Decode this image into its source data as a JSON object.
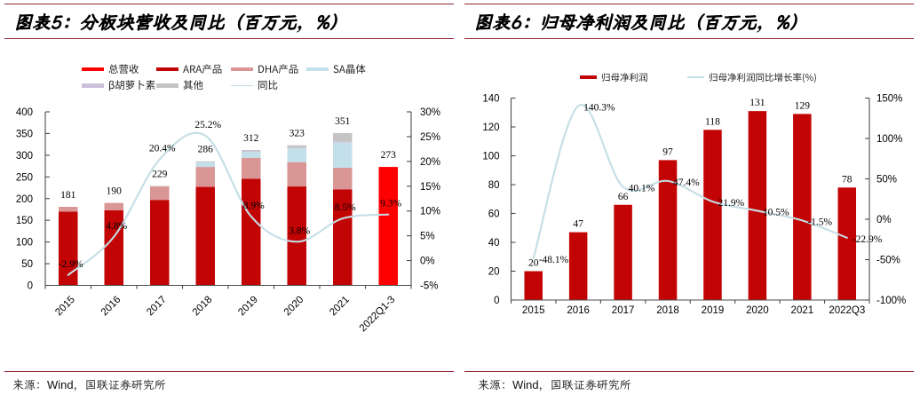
{
  "page": {
    "background": "#ffffff",
    "accent_rule_color": "#8e2437",
    "axis_color": "#4d4d4d",
    "text_color": "#000000"
  },
  "figures": [
    {
      "title": "图表5：分板块营收及同比（百万元，%）",
      "source": "来源：Wind，国联证券研究所"
    },
    {
      "title": "图表6：归母净利润及同比（百万元，%）",
      "source": "来源：Wind，国联证券研究所"
    }
  ],
  "chart_data": [
    {
      "type": "bar",
      "subtype": "stacked-bar-with-line",
      "title": "图表5：分板块营收及同比（百万元，%）",
      "categories": [
        "2015",
        "2016",
        "2017",
        "2018",
        "2019",
        "2020",
        "2021",
        "2022Q1-3"
      ],
      "series": [
        {
          "name": "总营收",
          "type": "bar",
          "color": "#ff0000",
          "values": [
            null,
            null,
            null,
            null,
            null,
            null,
            null,
            273
          ]
        },
        {
          "name": "ARA产品",
          "type": "bar",
          "color": "#c20404",
          "values": [
            170,
            173,
            197,
            227,
            246,
            228,
            221,
            null
          ]
        },
        {
          "name": "DHA产品",
          "type": "bar",
          "color": "#d99694",
          "values": [
            11,
            17,
            31,
            46,
            48,
            56,
            50,
            null
          ]
        },
        {
          "name": "SA晶体",
          "type": "bar",
          "color": "#c3dfea",
          "values": [
            0,
            0,
            0,
            11,
            14,
            32,
            58,
            null
          ]
        },
        {
          "name": "β胡萝卜素",
          "type": "bar",
          "color": "#ccc1da",
          "values": [
            0,
            0,
            0,
            0,
            2,
            2,
            2,
            null
          ]
        },
        {
          "name": "其他",
          "type": "bar",
          "color": "#c4c4c4",
          "values": [
            0,
            0,
            1,
            2,
            2,
            5,
            20,
            null
          ]
        },
        {
          "name": "同比",
          "type": "line",
          "color": "#c5dee6",
          "axis": "right",
          "values": [
            -2.9,
            4.8,
            20.4,
            25.2,
            8.9,
            3.8,
            8.5,
            9.3
          ]
        }
      ],
      "bar_total_labels": [
        "181",
        "190",
        "229",
        "286",
        "312",
        "323",
        "351",
        "273"
      ],
      "line_labels": [
        "-2.9%",
        "4.8%",
        "20.4%",
        "25.2%",
        "8.9%",
        "3.8%",
        "8.5%",
        "9.3%"
      ],
      "left_axis": {
        "min": 0,
        "max": 400,
        "step": 50,
        "tick_labels": [
          "0",
          "50",
          "100",
          "150",
          "200",
          "250",
          "300",
          "350",
          "400"
        ]
      },
      "right_axis": {
        "min": -5,
        "max": 30,
        "step": 5,
        "tick_labels": [
          "-5%",
          "0%",
          "5%",
          "10%",
          "15%",
          "20%",
          "25%",
          "30%"
        ]
      },
      "legend_position": "top",
      "grid": false
    },
    {
      "type": "bar",
      "subtype": "bar-with-line",
      "title": "图表6：归母净利润及同比（百万元，%）",
      "categories": [
        "2015",
        "2016",
        "2017",
        "2018",
        "2019",
        "2020",
        "2021",
        "2022Q3"
      ],
      "series": [
        {
          "name": "归母净利润",
          "type": "bar",
          "color": "#c20404",
          "values": [
            20,
            47,
            66,
            97,
            118,
            131,
            129,
            78
          ]
        },
        {
          "name": "归母净利润同比增长率(%)",
          "type": "line",
          "color": "#c5dee6",
          "axis": "right",
          "values": [
            -48.1,
            140.3,
            40.1,
            47.4,
            21.9,
            10.5,
            -1.5,
            -22.9
          ]
        }
      ],
      "bar_total_labels": [
        "20",
        "47",
        "66",
        "97",
        "118",
        "131",
        "129",
        "78"
      ],
      "line_labels": [
        "-48.1%",
        "140.3%",
        "40.1%",
        "47.4%",
        "21.9%",
        "10.5%",
        "-1.5%",
        "-22.9%"
      ],
      "left_axis": {
        "min": 0,
        "max": 140,
        "step": 20,
        "tick_labels": [
          "0",
          "20",
          "40",
          "60",
          "80",
          "100",
          "120",
          "140"
        ]
      },
      "right_axis": {
        "min": -100,
        "max": 150,
        "step": 50,
        "tick_labels": [
          "-100%",
          "-50%",
          "0%",
          "50%",
          "100%",
          "150%"
        ]
      },
      "legend_position": "top",
      "grid": false
    }
  ]
}
